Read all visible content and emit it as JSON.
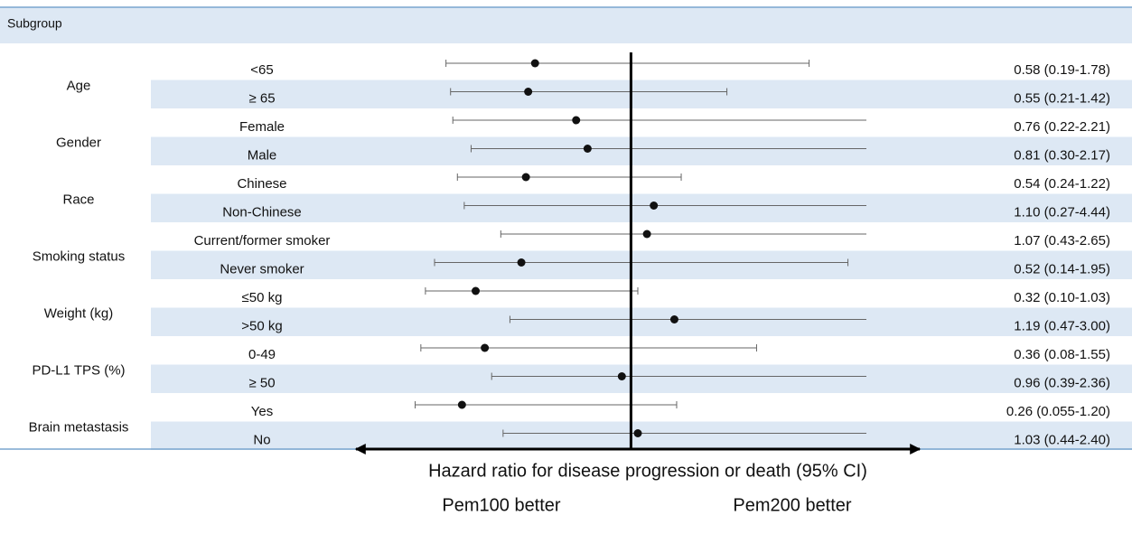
{
  "chart_data": {
    "type": "forest",
    "header": "Subgroup",
    "groups": [
      "Age",
      "Gender",
      "Race",
      "Smoking status",
      "Weight (kg)",
      "PD-L1 TPS (%)",
      "Brain metastasis"
    ],
    "categories": [
      "<65",
      "≥ 65",
      "Female",
      "Male",
      "Chinese",
      "Non-Chinese",
      "Current/former smoker",
      "Never smoker",
      "≤50 kg",
      ">50 kg",
      "0-49",
      "≥ 50",
      "Yes",
      "No"
    ],
    "values": [
      0.58,
      0.55,
      0.76,
      0.81,
      0.54,
      1.1,
      1.07,
      0.52,
      0.32,
      1.19,
      0.36,
      0.96,
      0.26,
      1.03
    ],
    "lower": [
      0.19,
      0.21,
      0.22,
      0.3,
      0.24,
      0.27,
      0.43,
      0.14,
      0.1,
      0.47,
      0.08,
      0.39,
      0.055,
      0.44
    ],
    "upper": [
      1.78,
      1.42,
      2.21,
      2.17,
      1.22,
      4.44,
      2.65,
      1.95,
      1.03,
      3.0,
      1.55,
      2.36,
      1.2,
      2.4
    ],
    "value_labels": [
      "0.58 (0.19-1.78)",
      "0.55 (0.21-1.42)",
      "0.76 (0.22-2.21)",
      "0.81 (0.30-2.17)",
      "0.54 (0.24-1.22)",
      "1.10 (0.27-4.44)",
      "1.07 (0.43-2.65)",
      "0.52 (0.14-1.95)",
      "0.32 (0.10-1.03)",
      "1.19 (0.47-3.00)",
      "0.36 (0.08-1.55)",
      "0.96 (0.39-2.36)",
      "0.26 (0.055-1.20)",
      "1.03 (0.44-2.40)"
    ],
    "xlim": [
      -0.22,
      2.28
    ],
    "reference_line": 1,
    "xlabel": "Hazard ratio for disease progression or death (95% CI)",
    "annotations": [
      "Pem100 better",
      "Pem200 better"
    ],
    "dot_color": "#111111",
    "ci_color": "#666666",
    "band_color": "#dde8f4"
  }
}
